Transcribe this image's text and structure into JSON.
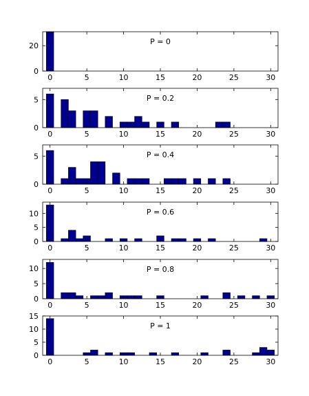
{
  "chart_data": [
    {
      "type": "bar",
      "label": "P = 0",
      "x": [
        0,
        1,
        2,
        3,
        4,
        5,
        6,
        7,
        8,
        9,
        10,
        11,
        12,
        13,
        14,
        15,
        16,
        17,
        18,
        19,
        20,
        21,
        22,
        23,
        24,
        25,
        26,
        27,
        28,
        29,
        30
      ],
      "values": [
        31,
        0,
        0,
        0,
        0,
        0,
        0,
        0,
        0,
        0,
        0,
        0,
        0,
        0,
        0,
        0,
        0,
        0,
        0,
        0,
        0,
        0,
        0,
        0,
        0,
        0,
        0,
        0,
        0,
        0,
        0
      ],
      "xlim": [
        -1,
        31
      ],
      "ylim": [
        0,
        31
      ],
      "xticks": [
        0,
        5,
        10,
        15,
        20,
        25,
        30
      ],
      "yticks": [
        0,
        20
      ],
      "bar_color": "#00008F"
    },
    {
      "type": "bar",
      "label": "P = 0.2",
      "x": [
        0,
        1,
        2,
        3,
        4,
        5,
        6,
        7,
        8,
        9,
        10,
        11,
        12,
        13,
        14,
        15,
        16,
        17,
        18,
        19,
        20,
        21,
        22,
        23,
        24,
        25,
        26,
        27,
        28,
        29,
        30
      ],
      "values": [
        6,
        0,
        5,
        3,
        0,
        3,
        3,
        0,
        2,
        0,
        1,
        1,
        2,
        1,
        0,
        1,
        0,
        1,
        0,
        0,
        0,
        0,
        0,
        1,
        1,
        0,
        0,
        0,
        0,
        0,
        0
      ],
      "xlim": [
        -1,
        31
      ],
      "ylim": [
        0,
        7
      ],
      "xticks": [
        0,
        5,
        10,
        15,
        20,
        25,
        30
      ],
      "yticks": [
        0,
        5
      ],
      "bar_color": "#00008F"
    },
    {
      "type": "bar",
      "label": "P = 0.4",
      "x": [
        0,
        1,
        2,
        3,
        4,
        5,
        6,
        7,
        8,
        9,
        10,
        11,
        12,
        13,
        14,
        15,
        16,
        17,
        18,
        19,
        20,
        21,
        22,
        23,
        24,
        25,
        26,
        27,
        28,
        29,
        30
      ],
      "values": [
        6,
        0,
        1,
        3,
        1,
        1,
        4,
        4,
        0,
        2,
        0,
        1,
        1,
        1,
        0,
        0,
        1,
        1,
        1,
        0,
        1,
        0,
        1,
        0,
        1,
        0,
        0,
        0,
        0,
        0,
        0
      ],
      "xlim": [
        -1,
        31
      ],
      "ylim": [
        0,
        7
      ],
      "xticks": [
        0,
        5,
        10,
        15,
        20,
        25,
        30
      ],
      "yticks": [
        0,
        5
      ],
      "bar_color": "#00008F"
    },
    {
      "type": "bar",
      "label": "P = 0.6",
      "x": [
        0,
        1,
        2,
        3,
        4,
        5,
        6,
        7,
        8,
        9,
        10,
        11,
        12,
        13,
        14,
        15,
        16,
        17,
        18,
        19,
        20,
        21,
        22,
        23,
        24,
        25,
        26,
        27,
        28,
        29,
        30
      ],
      "values": [
        13,
        0,
        1,
        4,
        1,
        2,
        0,
        0,
        1,
        0,
        1,
        0,
        1,
        0,
        0,
        2,
        0,
        1,
        1,
        0,
        1,
        0,
        1,
        0,
        0,
        0,
        0,
        0,
        0,
        1,
        0
      ],
      "xlim": [
        -1,
        31
      ],
      "ylim": [
        0,
        14
      ],
      "xticks": [
        0,
        5,
        10,
        15,
        20,
        25,
        30
      ],
      "yticks": [
        0,
        5,
        10
      ],
      "bar_color": "#00008F"
    },
    {
      "type": "bar",
      "label": "P = 0.8",
      "x": [
        0,
        1,
        2,
        3,
        4,
        5,
        6,
        7,
        8,
        9,
        10,
        11,
        12,
        13,
        14,
        15,
        16,
        17,
        18,
        19,
        20,
        21,
        22,
        23,
        24,
        25,
        26,
        27,
        28,
        29,
        30
      ],
      "values": [
        12,
        0,
        2,
        2,
        1,
        0,
        1,
        1,
        2,
        0,
        1,
        1,
        1,
        0,
        0,
        1,
        0,
        0,
        0,
        0,
        0,
        1,
        0,
        0,
        2,
        0,
        1,
        0,
        1,
        0,
        1
      ],
      "xlim": [
        -1,
        31
      ],
      "ylim": [
        0,
        13
      ],
      "xticks": [
        0,
        5,
        10,
        15,
        20,
        25,
        30
      ],
      "yticks": [
        0,
        5,
        10
      ],
      "bar_color": "#00008F"
    },
    {
      "type": "bar",
      "label": "P = 1",
      "x": [
        0,
        1,
        2,
        3,
        4,
        5,
        6,
        7,
        8,
        9,
        10,
        11,
        12,
        13,
        14,
        15,
        16,
        17,
        18,
        19,
        20,
        21,
        22,
        23,
        24,
        25,
        26,
        27,
        28,
        29,
        30
      ],
      "values": [
        14,
        0,
        0,
        0,
        0,
        1,
        2,
        0,
        1,
        0,
        1,
        1,
        0,
        0,
        1,
        0,
        0,
        1,
        0,
        0,
        0,
        1,
        0,
        0,
        2,
        0,
        0,
        0,
        1,
        3,
        2
      ],
      "xlim": [
        -1,
        31
      ],
      "ylim": [
        0,
        15
      ],
      "xticks": [
        0,
        5,
        10,
        15,
        20,
        25,
        30
      ],
      "yticks": [
        0,
        5,
        10,
        15
      ],
      "bar_color": "#00008F"
    }
  ]
}
